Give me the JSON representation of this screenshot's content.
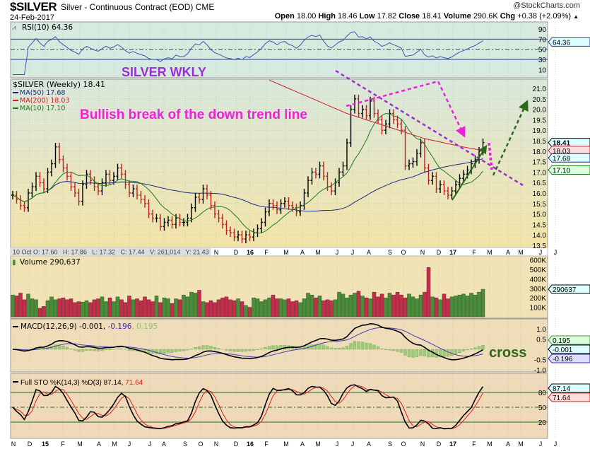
{
  "header": {
    "symbol": "$SILVER",
    "name": "Silver - Continuous Contract (EOD) CME",
    "brand": "@StockCharts.com",
    "date": "24-Feb-2017",
    "quote": [
      [
        "Open",
        "18.00"
      ],
      [
        "High",
        "18.46"
      ],
      [
        "Low",
        "17.82"
      ],
      [
        "Close",
        "18.41"
      ],
      [
        "Volume",
        "290.6K"
      ],
      [
        "Chg",
        "+0.38 (+2.09%)"
      ]
    ],
    "chg_icon": "triangle-up-icon"
  },
  "chart_data": {
    "type": "ohlc",
    "frequency": "weekly",
    "last_bar_date": "24-Feb-2017",
    "x_ticks": [
      "N",
      "D",
      "15",
      "F",
      "M",
      "A",
      "M",
      "J",
      "J",
      "A",
      "S",
      "O",
      "N",
      "D",
      "16",
      "F",
      "M",
      "A",
      "M",
      "J",
      "J",
      "A",
      "S",
      "O",
      "N",
      "D",
      "17",
      "F",
      "M",
      "A",
      "M",
      "J",
      "J"
    ],
    "close": [
      15.9,
      15.7,
      15.4,
      15.3,
      16.0,
      16.3,
      16.8,
      16.5,
      16.2,
      17.0,
      17.4,
      18.2,
      17.6,
      17.2,
      16.8,
      16.3,
      16.0,
      15.6,
      16.4,
      16.9,
      16.6,
      16.3,
      16.1,
      16.5,
      16.9,
      16.6,
      16.8,
      17.2,
      16.9,
      16.4,
      16.0,
      16.2,
      15.9,
      15.7,
      15.5,
      15.0,
      14.8,
      14.8,
      14.4,
      14.6,
      14.7,
      14.5,
      14.8,
      14.6,
      14.6,
      14.8,
      15.3,
      15.8,
      15.7,
      16.2,
      15.9,
      15.4,
      15.0,
      14.8,
      14.5,
      14.2,
      14.1,
      13.9,
      14.0,
      13.8,
      14.0,
      13.9,
      14.1,
      14.3,
      14.6,
      15.1,
      15.5,
      15.4,
      15.2,
      15.5,
      15.6,
      15.4,
      15.3,
      15.1,
      15.4,
      16.0,
      16.6,
      17.0,
      16.9,
      17.3,
      16.8,
      16.3,
      16.1,
      16.5,
      17.0,
      17.3,
      18.4,
      20.0,
      20.5,
      19.8,
      20.0,
      19.7,
      20.4,
      19.8,
      19.5,
      19.0,
      19.3,
      19.8,
      19.5,
      19.3,
      19.0,
      17.3,
      17.4,
      17.5,
      17.9,
      18.4,
      17.2,
      16.6,
      16.8,
      16.2,
      16.4,
      16.1,
      15.9,
      16.1,
      16.4,
      16.7,
      16.9,
      17.1,
      17.4,
      17.6,
      18.0,
      18.41
    ],
    "volume_k": [
      230,
      220,
      250,
      180,
      240,
      190,
      180,
      90,
      110,
      170,
      210,
      180,
      190,
      200,
      180,
      190,
      150,
      160,
      155,
      170,
      150,
      180,
      190,
      210,
      160,
      200,
      160,
      210,
      180,
      150,
      220,
      180,
      190,
      170,
      210,
      180,
      160,
      220,
      150,
      200,
      190,
      140,
      190,
      180,
      230,
      210,
      260,
      250,
      280,
      160,
      150,
      170,
      150,
      180,
      200,
      210,
      180,
      170,
      190,
      160,
      120,
      100,
      200,
      190,
      160,
      180,
      200,
      230,
      190,
      190,
      180,
      190,
      160,
      170,
      150,
      190,
      250,
      230,
      200,
      220,
      170,
      180,
      170,
      180,
      260,
      240,
      200,
      230,
      250,
      270,
      220,
      200,
      190,
      260,
      210,
      240,
      200,
      250,
      230,
      260,
      230,
      200,
      240,
      210,
      190,
      230,
      260,
      520,
      210,
      200,
      180,
      240,
      190,
      210,
      220,
      230,
      240,
      220,
      250,
      230,
      260,
      290.6
    ],
    "ma200": [
      21.4,
      21.0,
      20.6,
      20.2,
      19.8,
      19.5,
      19.2,
      18.9,
      18.6,
      18.4,
      18.2,
      18.03
    ],
    "price_axis": {
      "min": 13.5,
      "max": 21.0,
      "ticks": [
        "21.0",
        "20.5",
        "20.0",
        "19.5",
        "19.0",
        "18.5",
        "18.0",
        "17.5",
        "17.0",
        "16.5",
        "16.0",
        "15.5",
        "15.0",
        "14.5",
        "14.0",
        "13.5"
      ]
    },
    "rsi_axis": [
      "90",
      "70",
      "50",
      "30",
      "10"
    ],
    "volume_axis": [
      "600K",
      "500K",
      "400K",
      "300K",
      "200K",
      "100K"
    ],
    "macd_axis": [
      "1.0",
      "0.5",
      "0.0",
      "-0.5",
      "-1.0"
    ],
    "sto_axis": [
      "80",
      "50",
      "20"
    ]
  },
  "panels": {
    "rsi": {
      "legend": "RSI(10) 64.36",
      "value": "64.36"
    },
    "price": {
      "legend": "$SILVER (Weekly) 18.41",
      "ma50": "MA(50) 17.68",
      "ma200": "MA(200) 18.03",
      "ma10": "MA(10) 17.10",
      "badges": [
        "18.41",
        "18.03",
        "17.68",
        "17.10"
      ],
      "info": "10 Oct O: 17.60   H: 17.86   L: 17.32   C: 17.44   V: 261,014   Y: 21.43"
    },
    "volume": {
      "legend": "Volume 290,637",
      "badge": "290637"
    },
    "macd": {
      "legend_a": "MACD(12,26,9) -0.001,",
      "legend_b": " -0.196",
      "legend_c": ", 0.195",
      "badges": [
        "0.195",
        "-0.001",
        "-0.196"
      ]
    },
    "sto": {
      "legend_a": "Full STO %K(14,3) %D(3) 87.14,",
      "legend_b": " 71.64",
      "badges": [
        "87.14",
        "71.64"
      ]
    }
  },
  "annotations": {
    "title": "SILVER WKLY",
    "trend_note": "Bullish break of the down trend line",
    "cross_note": "cross"
  },
  "colors": {
    "up": "#4a8c3a",
    "down": "#c0304a",
    "ma50": "#1c2a80",
    "ma200": "#d02020",
    "ma10": "#1f7a1f",
    "rsi": "#3a58b0",
    "note_magenta": "#ee1fe0",
    "note_purple": "#9b2fd6",
    "note_green": "#2a6a1a"
  }
}
